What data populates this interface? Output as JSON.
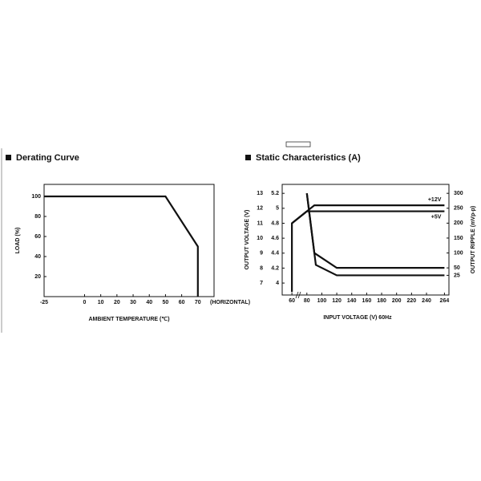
{
  "chart_data": [
    {
      "type": "line",
      "title": "Derating Curve",
      "xlabel": "AMBIENT TEMPERATURE (℃)",
      "ylabel": "LOAD (%)",
      "x_note": "(HORIZONTAL)",
      "x": [
        -25,
        50,
        70,
        70
      ],
      "values": [
        100,
        100,
        50,
        0
      ],
      "color": "#111111",
      "xlim": [
        -25,
        80
      ],
      "xticks": [
        -25,
        0,
        10,
        20,
        30,
        40,
        50,
        60,
        70
      ],
      "ylim": [
        0,
        112
      ],
      "yticks": [
        20,
        40,
        60,
        80,
        100
      ],
      "grid": false
    },
    {
      "type": "line",
      "title": "Static Characteristics (A)",
      "xlabel": "INPUT VOLTAGE (V) 60Hz",
      "ylabel": "OUTPUT VOLTAGE (V)",
      "y2label": "OUTPUT RIPPLE (mVp-p)",
      "xlim": [
        47,
        270
      ],
      "xticks": [
        60,
        80,
        100,
        120,
        140,
        160,
        180,
        200,
        220,
        240,
        264
      ],
      "ylim": [
        3.84,
        5.32
      ],
      "yticks": [
        4.0,
        4.2,
        4.4,
        4.6,
        4.8,
        5.0,
        5.2
      ],
      "y3lim": [
        6.2,
        13.6
      ],
      "y3ticks": [
        7,
        8,
        9,
        10,
        11,
        12,
        13
      ],
      "y2lim": [
        -41,
        330
      ],
      "y2ticks": [
        25,
        50,
        100,
        150,
        200,
        250,
        300
      ],
      "series": [
        {
          "name": "+12V",
          "color": "#111111",
          "axis": "y3",
          "x": [
            60,
            60,
            90,
            264
          ],
          "values": [
            6.4,
            11.0,
            12.2,
            12.2
          ]
        },
        {
          "name": "+5V",
          "color": "#111111",
          "axis": "y",
          "x": [
            60,
            80,
            264
          ],
          "values": [
            4.8,
            4.96,
            4.96
          ]
        },
        {
          "color": "#111111",
          "axis": "y2",
          "x": [
            80,
            90,
            120,
            264
          ],
          "values": [
            300,
            100,
            50,
            50
          ]
        },
        {
          "color": "#111111",
          "axis": "y2",
          "x": [
            80,
            92,
            120,
            264
          ],
          "values": [
            300,
            60,
            25,
            25
          ]
        }
      ],
      "grid": false
    }
  ]
}
